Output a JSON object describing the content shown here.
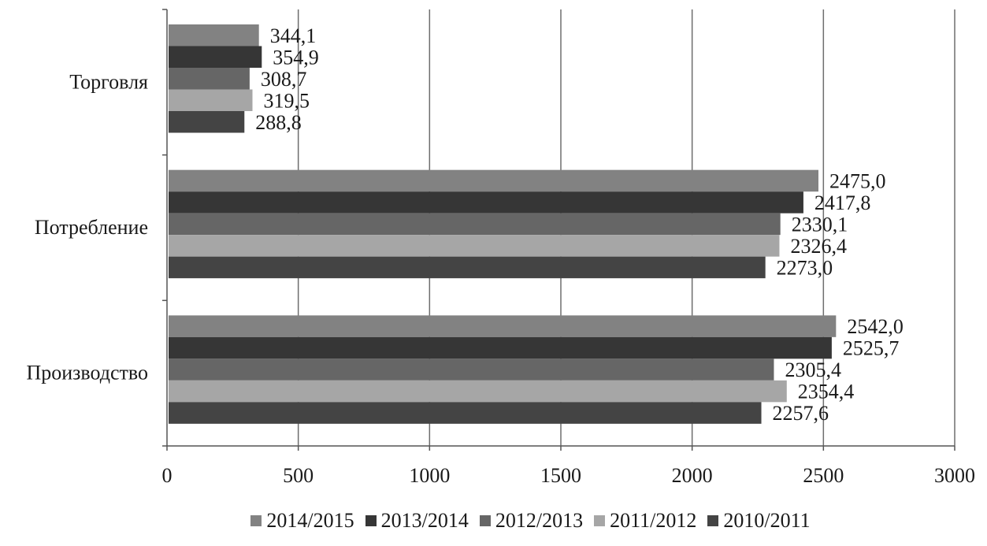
{
  "chart_data": {
    "type": "bar",
    "orientation": "horizontal",
    "categories": [
      "Торговля",
      "Потребление",
      "Производство"
    ],
    "series": [
      {
        "name": "2014/2015",
        "color": "#828282",
        "values": [
          344.1,
          2475.0,
          2542.0
        ],
        "labels": [
          "344,1",
          "2475,0",
          "2542,0"
        ]
      },
      {
        "name": "2013/2014",
        "color": "#363636",
        "values": [
          354.9,
          2417.8,
          2525.7
        ],
        "labels": [
          "354,9",
          "2417,8",
          "2525,7"
        ]
      },
      {
        "name": "2012/2013",
        "color": "#666666",
        "values": [
          308.7,
          2330.1,
          2305.4
        ],
        "labels": [
          "308,7",
          "2330,1",
          "2305,4"
        ]
      },
      {
        "name": "2011/2012",
        "color": "#a6a6a6",
        "values": [
          319.5,
          2326.4,
          2354.4
        ],
        "labels": [
          "319,5",
          "2326,4",
          "2354,4"
        ]
      },
      {
        "name": "2010/2011",
        "color": "#444444",
        "values": [
          288.8,
          2273.0,
          2257.6
        ],
        "labels": [
          "288,8",
          "2273,0",
          "2257,6"
        ]
      }
    ],
    "xlim": [
      0,
      3000
    ],
    "ticks": [
      0,
      500,
      1000,
      1500,
      2000,
      2500,
      3000
    ],
    "tick_labels": [
      "0",
      "500",
      "1000",
      "1500",
      "2000",
      "2500",
      "3000"
    ],
    "grid": "vertical",
    "legend_position": "bottom",
    "title": "",
    "xlabel": "",
    "ylabel": ""
  }
}
